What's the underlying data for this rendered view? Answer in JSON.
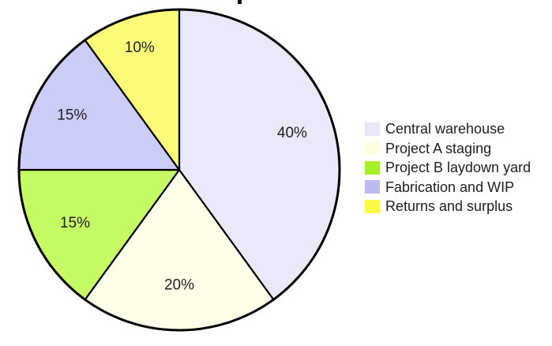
{
  "chart_data": {
    "type": "pie",
    "categories": [
      "Central warehouse",
      "Project A staging",
      "Project B laydown yard",
      "Fabrication and WIP",
      "Returns and surplus"
    ],
    "values": [
      40,
      20,
      15,
      15,
      10
    ],
    "slice_labels": [
      "40%",
      "20%",
      "15%",
      "15%",
      "10%"
    ],
    "slice_colors": [
      "#E9E9F9",
      "#FEFEE9",
      "#C5FA64",
      "#CCCCF8",
      "#FBFB79"
    ],
    "legend_swatch_colors": [
      "#E7E7F7",
      "#FDFDE1",
      "#AAF02A",
      "#BBBBF0",
      "#FCFA45"
    ],
    "stroke_color": "#000000",
    "label_color": "#1f1f1f",
    "start_angle": "top",
    "direction": "clockwise",
    "legend_position": "right",
    "legend_items": [
      "Central warehouse",
      "Project A staging",
      "Project B laydown yard",
      "Fabrication and WIP",
      "Returns and surplus"
    ]
  }
}
